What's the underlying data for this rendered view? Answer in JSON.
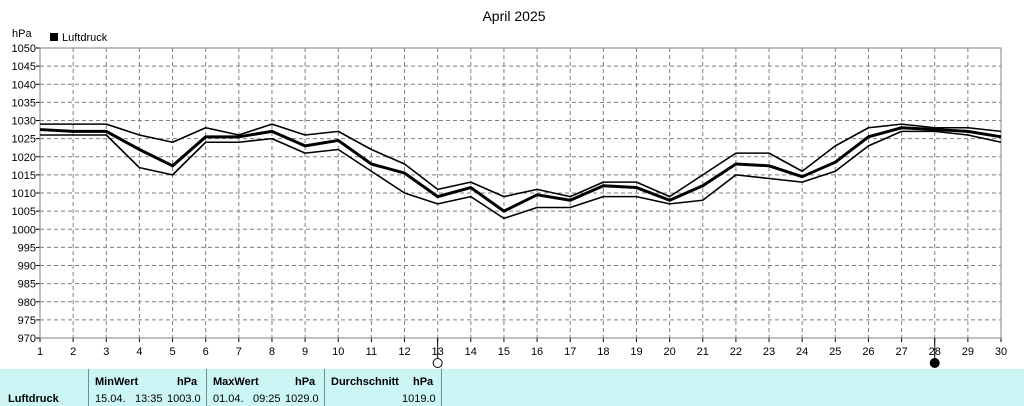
{
  "chart_data": {
    "type": "line",
    "title": "April 2025",
    "ylabel": "hPa",
    "legend": {
      "label": "Luftdruck",
      "color": "#000000",
      "position": "top-left"
    },
    "ylim": [
      970,
      1050
    ],
    "yticks": [
      970,
      975,
      980,
      985,
      990,
      995,
      1000,
      1005,
      1010,
      1015,
      1020,
      1025,
      1030,
      1035,
      1040,
      1045,
      1050
    ],
    "xlim": [
      1,
      30
    ],
    "x": [
      1,
      2,
      3,
      4,
      5,
      6,
      7,
      8,
      9,
      10,
      11,
      12,
      13,
      14,
      15,
      16,
      17,
      18,
      19,
      20,
      21,
      22,
      23,
      24,
      25,
      26,
      27,
      28,
      29,
      30
    ],
    "grid": true,
    "series": [
      {
        "role": "max",
        "values": [
          1029,
          1029,
          1029,
          1026,
          1024,
          1028,
          1026,
          1029,
          1026,
          1027,
          1022,
          1018,
          1011,
          1013,
          1009,
          1011,
          1009,
          1013,
          1013,
          1009,
          1015,
          1021,
          1021,
          1016,
          1023,
          1028,
          1029,
          1028,
          1028,
          1027
        ]
      },
      {
        "role": "avg",
        "values": [
          1027.5,
          1027,
          1027,
          1022,
          1017.5,
          1025.5,
          1025.5,
          1027,
          1023,
          1024.5,
          1018,
          1015.5,
          1009,
          1011.5,
          1005,
          1009.5,
          1008,
          1012,
          1011.5,
          1008,
          1012,
          1018,
          1017.5,
          1014.5,
          1018.5,
          1025.5,
          1028,
          1027.5,
          1027,
          1025.5
        ]
      },
      {
        "role": "min",
        "values": [
          1026,
          1026,
          1026,
          1017,
          1015,
          1024,
          1024,
          1025,
          1021,
          1022,
          1016,
          1010,
          1007,
          1009,
          1003,
          1006,
          1006,
          1009,
          1009,
          1007,
          1008,
          1015,
          1014,
          1013,
          1016,
          1023,
          1027,
          1027,
          1026,
          1024
        ]
      }
    ],
    "moon_phases": [
      {
        "day": 13,
        "phase": "full"
      },
      {
        "day": 28,
        "phase": "new"
      }
    ]
  },
  "colors": {
    "footer_bg": "#ccf5f5",
    "line": "#000000",
    "grid": "#808080"
  },
  "summary": {
    "row_label": "Luftdruck",
    "min": {
      "header": "MinWert",
      "unit": "hPa",
      "date": "15.04.",
      "time": "13:35",
      "value": "1003.0"
    },
    "max": {
      "header": "MaxWert",
      "unit": "hPa",
      "date": "01.04.",
      "time": "09:25",
      "value": "1029.0"
    },
    "avg": {
      "header": "Durchschnitt",
      "unit": "hPa",
      "value": "1019.0"
    }
  }
}
